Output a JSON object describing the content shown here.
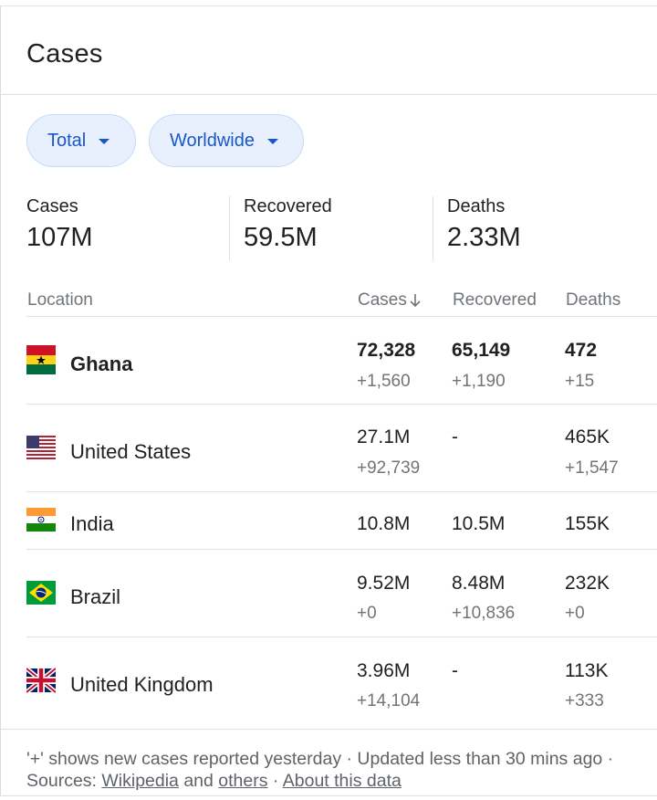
{
  "header": {
    "title": "Cases"
  },
  "filters": {
    "total_label": "Total",
    "region_label": "Worldwide"
  },
  "summary": [
    {
      "label": "Cases",
      "value": "107M"
    },
    {
      "label": "Recovered",
      "value": "59.5M"
    },
    {
      "label": "Deaths",
      "value": "2.33M"
    }
  ],
  "table": {
    "headers": {
      "location": "Location",
      "cases": "Cases",
      "recovered": "Recovered",
      "deaths": "Deaths"
    },
    "rows": [
      {
        "country": "Ghana",
        "flag": "ghana-flag-icon",
        "cases": "72,328",
        "cases_new": "+1,560",
        "recovered": "65,149",
        "recovered_new": "+1,190",
        "deaths": "472",
        "deaths_new": "+15"
      },
      {
        "country": "United States",
        "flag": "us-flag-icon",
        "cases": "27.1M",
        "cases_new": "+92,739",
        "recovered": "-",
        "recovered_new": "",
        "deaths": "465K",
        "deaths_new": "+1,547"
      },
      {
        "country": "India",
        "flag": "india-flag-icon",
        "cases": "10.8M",
        "cases_new": "",
        "recovered": "10.5M",
        "recovered_new": "",
        "deaths": "155K",
        "deaths_new": ""
      },
      {
        "country": "Brazil",
        "flag": "brazil-flag-icon",
        "cases": "9.52M",
        "cases_new": "+0",
        "recovered": "8.48M",
        "recovered_new": "+10,836",
        "deaths": "232K",
        "deaths_new": "+0"
      },
      {
        "country": "United Kingdom",
        "flag": "uk-flag-icon",
        "cases": "3.96M",
        "cases_new": "+14,104",
        "recovered": "-",
        "recovered_new": "",
        "deaths": "113K",
        "deaths_new": "+333"
      }
    ]
  },
  "footer": {
    "note": "'+' shows new cases reported yesterday",
    "sep1": " · ",
    "updated": "Updated less than 30 mins ago",
    "sep2": " · ",
    "sources_prefix": "Sources: ",
    "wikipedia": "Wikipedia",
    "and": " and ",
    "others": "others",
    "sep3": " · ",
    "about": "About this data"
  },
  "colors": {
    "chip_bg": "#e8f0fe",
    "chip_text": "#1a56c9",
    "muted": "#70757a",
    "divider": "#e0e0e0"
  }
}
